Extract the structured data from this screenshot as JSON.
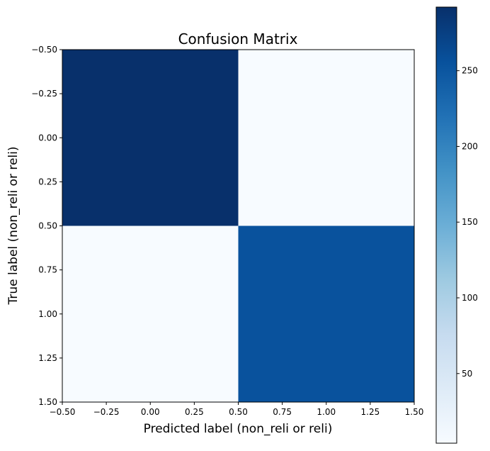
{
  "chart_data": {
    "type": "heatmap",
    "title": "Confusion Matrix",
    "xlabel": "Predicted label (non_reli or reli)",
    "ylabel": "True label (non_reli or reli)",
    "x_ticks": [
      "−0.50",
      "−0.25",
      "0.00",
      "0.25",
      "0.50",
      "0.75",
      "1.00",
      "1.25",
      "1.50"
    ],
    "y_ticks": [
      "−0.50",
      "−0.25",
      "0.00",
      "0.25",
      "0.50",
      "0.75",
      "1.00",
      "1.25",
      "1.50"
    ],
    "xlim": [
      -0.5,
      1.5
    ],
    "ylim": [
      -0.5,
      1.5
    ],
    "rows": [
      "non_reli",
      "reli"
    ],
    "columns": [
      "non_reli",
      "reli"
    ],
    "values": [
      [
        292,
        4
      ],
      [
        4,
        255
      ]
    ],
    "colormap": "Blues",
    "colorbar": {
      "ticks": [
        "50",
        "100",
        "150",
        "200",
        "250"
      ],
      "tick_values": [
        50,
        100,
        150,
        200,
        250
      ],
      "min": 4,
      "max": 292
    },
    "grid": false,
    "colors": {
      "dark": "#08306b",
      "mid_dark": "#08519c",
      "light": "#f7fbff"
    }
  }
}
